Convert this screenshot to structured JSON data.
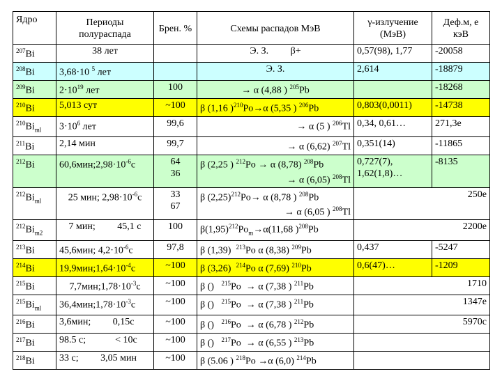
{
  "headers": {
    "nucleus": "Ядро",
    "halflife": "Периоды полураспада",
    "branching": "Брен. %",
    "decay": "Схемы распадов МэВ",
    "gamma": "γ-излучение (МэВ)",
    "defect": "Деф.м, е кэВ"
  },
  "rows": [
    {
      "nuc": "<sup>207</sup>Bi",
      "hl": "38 лет",
      "br": "",
      "decay": "Э. З. &nbsp;&nbsp;&nbsp;&nbsp;&nbsp;&nbsp;&nbsp; β+",
      "gamma": "0,57(98), 1,77",
      "def": "-20058",
      "color": "white",
      "h": 26,
      "hlAlign": "c",
      "decayAlign": "c",
      "merge": false
    },
    {
      "nuc": "<sup>208</sup>Bi",
      "hl": "3,68·10 <sup>5</sup> лет",
      "br": "",
      "decay": "Э. З.",
      "gamma": "2,614",
      "def": "-18879",
      "color": "cyan",
      "h": 26,
      "hlAlign": "l",
      "decayAlign": "c",
      "merge": false
    },
    {
      "nuc": "<sup>209</sup>Bi",
      "hl": "2·10<sup>19</sup> лет",
      "br": "100",
      "decay": "→ α (4,88 ) <sup>205</sup>Pb",
      "gamma": "",
      "def": "-18268",
      "color": "green",
      "h": 26,
      "hlAlign": "l",
      "decayAlign": "c",
      "merge": false
    },
    {
      "nuc": "<sup>210</sup>Bi",
      "hl": "5,013 сут",
      "br": "~100",
      "decay": "β (1,16 )<sup>210</sup>Po→α (5,35 ) <sup>206</sup>Pb",
      "gamma": "0,803(0,0011)",
      "def": "-14738",
      "color": "yellow",
      "h": 26,
      "hlAlign": "l",
      "decayAlign": "l",
      "merge": false
    },
    {
      "nuc": "<sup>210</sup>Bi<sub>ml</sub>",
      "hl": "3·10<sup>6</sup> лет",
      "br": "99,6",
      "decay": "→ α (5 ) <sup>206</sup>Tl",
      "gamma": "0,34, 0,61…",
      "def": "271,3е",
      "color": "white",
      "h": 26,
      "hlAlign": "l",
      "decayAlign": "r",
      "merge": false
    },
    {
      "nuc": "<sup>211</sup>Bi",
      "hl": "2,14 мин",
      "br": "99,7",
      "decay": "→ α (6,62) <sup>207</sup>Tl",
      "gamma": "0,351(14)",
      "def": "-11865",
      "color": "white",
      "h": 26,
      "hlAlign": "l",
      "decayAlign": "r",
      "merge": false
    },
    {
      "nuc": "<sup>212</sup>Bi",
      "hl": "60,6мин;2,98·10<sup>-6</sup>c",
      "br": "64<br>36",
      "decay": "β (2,25 ) <sup>212</sup>Po → α (8,78) <sup>208</sup>Pb<br><span style=\"float:right\">→ α (6,05) <sup>208</sup>Tl</span>",
      "gamma": "0,727(7),<br>1,62(1,8)…",
      "def": "-8135",
      "color": "green",
      "h": 46,
      "hlAlign": "l",
      "decayAlign": "l",
      "merge": false
    },
    {
      "nuc": "<sup>212</sup>Bi<sub>ml</sub>",
      "hl": "25 мин; 2,98·10<sup>-6</sup>c",
      "br": "33<br>67",
      "decay": "β (2,25)<sup>212</sup>Po→ α (8,78 ) <sup>208</sup>Pb<br><span style=\"float:right\">→ α (6,05 ) <sup>208</sup>Tl</span>",
      "gamma": "",
      "def": "250е",
      "color": "white",
      "h": 46,
      "hlAlign": "c",
      "decayAlign": "l",
      "merge": true
    },
    {
      "nuc": "<sup>212</sup>Bi<sub>m2</sub>",
      "hl": "7 мин; &nbsp;&nbsp;&nbsp;&nbsp;&nbsp;&nbsp;&nbsp; 45,1 c",
      "br": "100",
      "decay": "β(1,95)<sup>212</sup>Po<sub>m</sub>→α(11,68 )<sup>208</sup>Pb",
      "gamma": "",
      "def": "2200е",
      "color": "white",
      "h": 26,
      "hlAlign": "c",
      "decayAlign": "l",
      "merge": true
    },
    {
      "nuc": "<sup>213</sup>Bi",
      "hl": "45,6мин; 4,2·10<sup>-6</sup>c",
      "br": "97,8",
      "decay": "β (1,39) &nbsp;<sup>213</sup>Po α (8,38) <sup>209</sup>Pb",
      "gamma": "0,437",
      "def": "-5247",
      "color": "white",
      "h": 26,
      "hlAlign": "l",
      "decayAlign": "l",
      "merge": false
    },
    {
      "nuc": "<sup>214</sup>Bi",
      "hl": "19,9мин;1,64·10<sup>-4</sup>c",
      "br": "~100",
      "decay": "β (3,26) &nbsp;<sup>214</sup>Po α (7,69) <sup>210</sup>Pb",
      "gamma": "0,6(47)…",
      "def": "-1209",
      "color": "yellow",
      "h": 26,
      "hlAlign": "l",
      "decayAlign": "l",
      "merge": false
    },
    {
      "nuc": "<sup>215</sup>Bi",
      "hl": "7,7мин;1,78·10<sup>-3</sup>c",
      "br": "~100",
      "decay": "β () &nbsp;&nbsp;<sup>215</sup>Po &nbsp;→ α (7,38 ) <sup>211</sup>Pb",
      "gamma": "",
      "def": "1710",
      "color": "white",
      "h": 26,
      "hlAlign": "c",
      "decayAlign": "l",
      "merge": true
    },
    {
      "nuc": "<sup>215</sup>Bi<sub>ml</sub>",
      "hl": "36,4мин;1,78·10<sup>-3</sup>c",
      "br": "~100",
      "decay": "β () &nbsp;&nbsp;<sup>215</sup>Po &nbsp;→ α (7,38 ) <sup>211</sup>Pb",
      "gamma": "",
      "def": "1347е",
      "color": "white",
      "h": 26,
      "hlAlign": "l",
      "decayAlign": "l",
      "merge": true
    },
    {
      "nuc": "<sup>216</sup>Bi",
      "hl": "3,6мин; &nbsp;&nbsp;&nbsp;&nbsp;&nbsp;&nbsp;&nbsp; 0,15c",
      "br": "~100",
      "decay": "β () &nbsp;&nbsp;<sup>216</sup>Po &nbsp;→ α (6,78 ) <sup>212</sup>Pb",
      "gamma": "",
      "def": "5970с",
      "color": "white",
      "h": 26,
      "hlAlign": "l",
      "decayAlign": "l",
      "merge": true
    },
    {
      "nuc": "<sup>217</sup>Bi",
      "hl": "98.5 с; &nbsp;&nbsp;&nbsp;&nbsp;&nbsp;&nbsp;&nbsp;&nbsp;&nbsp;&nbsp; &lt; 10с",
      "br": "~100",
      "decay": "β () &nbsp;&nbsp;<sup>217</sup>Po &nbsp;→ α (6,55 ) <sup>213</sup>Pb",
      "gamma": "",
      "def": "",
      "color": "white",
      "h": 26,
      "hlAlign": "l",
      "decayAlign": "l",
      "merge": true
    },
    {
      "nuc": "<sup>218</sup>Bi",
      "hl": "33 с; &nbsp;&nbsp;&nbsp;&nbsp;&nbsp;&nbsp;&nbsp; 3,05 мин",
      "br": "~100",
      "decay": "β (5.06 ) <sup>218</sup>Po →α (6,0) <sup>214</sup>Pb",
      "gamma": "",
      "def": "",
      "color": "white",
      "h": 26,
      "hlAlign": "l",
      "decayAlign": "l",
      "merge": true
    }
  ]
}
